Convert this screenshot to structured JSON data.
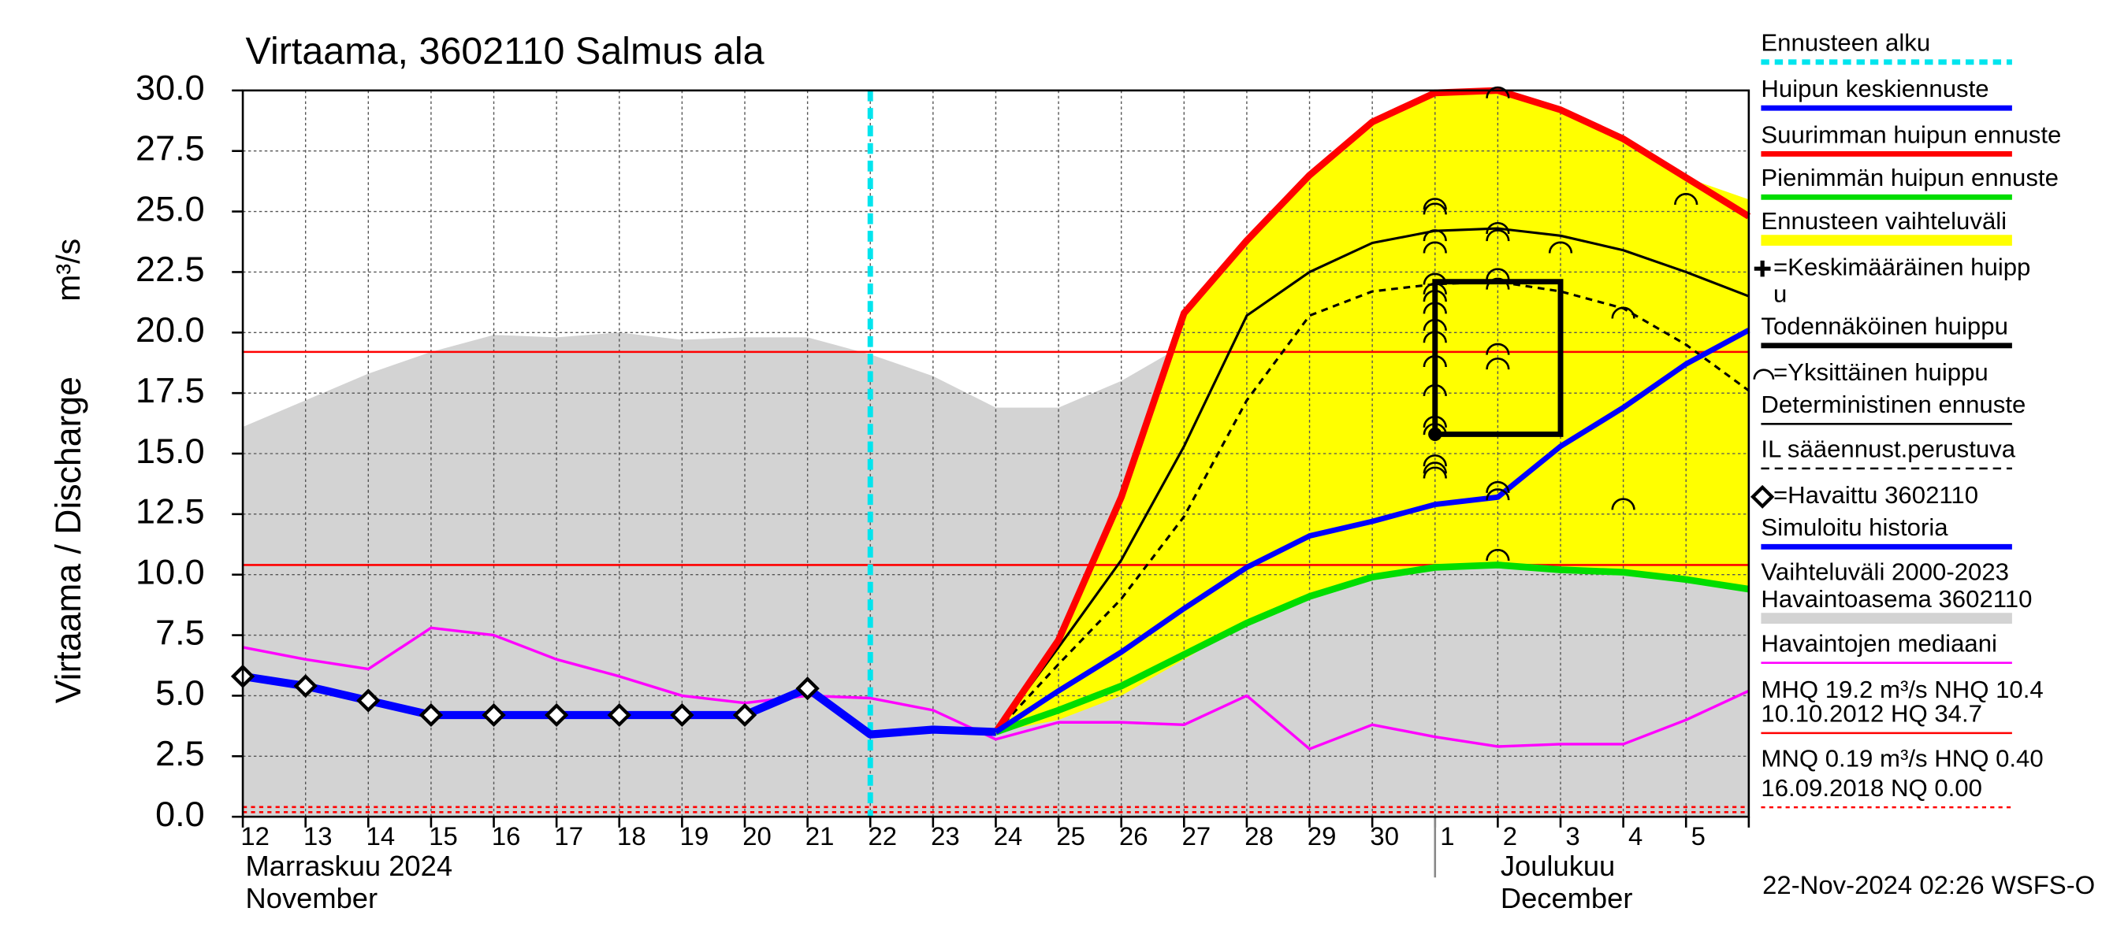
{
  "chart_data": {
    "type": "line",
    "title": "Virtaama, 3602110 Salmus ala",
    "y_label": "Virtaama / Discharge",
    "y_unit": "m³/s",
    "categories": [
      "12",
      "13",
      "14",
      "15",
      "16",
      "17",
      "18",
      "19",
      "20",
      "21",
      "22",
      "23",
      "24",
      "25",
      "26",
      "27",
      "28",
      "29",
      "30",
      "1",
      "2",
      "3",
      "4",
      "5",
      null
    ],
    "months": [
      [
        "Marraskuu 2024",
        "November"
      ],
      [
        "Joulukuu",
        "December"
      ]
    ],
    "ylim": [
      0,
      30
    ],
    "yticks": [
      {
        "value": 0,
        "label": "0.0"
      },
      {
        "value": 2.5,
        "label": "2.5"
      },
      {
        "value": 5,
        "label": "5.0"
      },
      {
        "value": 7.5,
        "label": "7.5"
      },
      {
        "value": 10,
        "label": "10.0"
      },
      {
        "value": 12.5,
        "label": "12.5"
      },
      {
        "value": 15,
        "label": "15.0"
      },
      {
        "value": 17.5,
        "label": "17.5"
      },
      {
        "value": 20,
        "label": "20.0"
      },
      {
        "value": 22.5,
        "label": "22.5"
      },
      {
        "value": 25,
        "label": "25.0"
      },
      {
        "value": 27.5,
        "label": "27.5"
      },
      {
        "value": 30,
        "label": "30.0"
      }
    ],
    "grid": true,
    "forecast_start": "22",
    "range_upper": {
      "color": "#d3d3d3",
      "values": [
        16.1,
        17.2,
        18.3,
        19.2,
        19.9,
        19.8,
        20.0,
        19.7,
        19.8,
        19.8,
        19.1,
        18.2,
        16.9,
        16.9,
        18.0,
        19.5,
        20.5,
        20.7,
        20.0,
        18.0,
        17.0,
        16.0,
        15.5,
        14.8,
        14.7
      ]
    },
    "band": {
      "color": "#ffff00",
      "upper": [
        null,
        null,
        null,
        null,
        null,
        null,
        null,
        null,
        null,
        null,
        null,
        null,
        3.5,
        7.3,
        13.2,
        20.8,
        23.8,
        26.5,
        28.7,
        29.9,
        30.0,
        29.2,
        28.0,
        26.4,
        25.5
      ],
      "lower": [
        null,
        null,
        null,
        null,
        null,
        null,
        null,
        null,
        null,
        null,
        null,
        null,
        3.5,
        4.0,
        5.0,
        6.5,
        8.0,
        9.1,
        9.9,
        10.3,
        10.4,
        10.2,
        10.1,
        9.8,
        9.4
      ]
    },
    "hlines": [
      {
        "value": 19.2,
        "color": "#ff0000",
        "style": "solid"
      },
      {
        "value": 10.4,
        "color": "#ff0000",
        "style": "solid"
      },
      {
        "value": 0.4,
        "color": "#ff0000",
        "style": "dotted"
      },
      {
        "value": 0.19,
        "color": "#ff0000",
        "style": "dotted"
      }
    ],
    "series": {
      "median": {
        "color": "#ff00ff",
        "values": [
          7.0,
          6.5,
          6.1,
          7.8,
          7.5,
          6.5,
          5.8,
          5.0,
          4.7,
          5.0,
          4.9,
          4.4,
          3.2,
          3.9,
          3.9,
          3.8,
          5.0,
          2.8,
          3.8,
          3.3,
          2.9,
          3.0,
          3.0,
          4.0,
          5.2
        ]
      },
      "deterministic": {
        "color": "#000000",
        "values": [
          null,
          null,
          null,
          null,
          null,
          null,
          null,
          null,
          null,
          null,
          null,
          null,
          3.5,
          7.0,
          10.6,
          15.3,
          20.7,
          22.5,
          23.7,
          24.2,
          24.3,
          24.0,
          23.4,
          22.5,
          21.5
        ]
      },
      "il_forecast": {
        "color": "#000000",
        "values": [
          null,
          null,
          null,
          null,
          null,
          null,
          null,
          null,
          null,
          null,
          null,
          null,
          3.5,
          6.3,
          9.0,
          12.4,
          17.2,
          20.7,
          21.7,
          22.0,
          22.1,
          21.7,
          21.0,
          19.5,
          17.6
        ]
      },
      "forecast_min": {
        "color": "#00dd00",
        "values": [
          null,
          null,
          null,
          null,
          null,
          null,
          null,
          null,
          null,
          null,
          null,
          null,
          3.5,
          4.4,
          5.4,
          6.7,
          8.0,
          9.1,
          9.9,
          10.3,
          10.4,
          10.2,
          10.1,
          9.8,
          9.4
        ]
      },
      "forecast_max": {
        "color": "#ff0000",
        "values": [
          null,
          null,
          null,
          null,
          null,
          null,
          null,
          null,
          null,
          null,
          null,
          null,
          3.5,
          7.3,
          13.2,
          20.8,
          23.8,
          26.5,
          28.7,
          29.9,
          30.0,
          29.2,
          28.0,
          26.4,
          24.8
        ]
      },
      "forecast_mean": {
        "color": "#0000ff",
        "values": [
          null,
          null,
          null,
          null,
          null,
          null,
          null,
          null,
          null,
          null,
          null,
          null,
          3.5,
          5.2,
          6.8,
          8.6,
          10.3,
          11.6,
          12.2,
          12.9,
          13.2,
          15.3,
          16.9,
          18.7,
          20.1
        ]
      },
      "simulated": {
        "color": "#0000ff",
        "values": [
          5.8,
          5.4,
          4.8,
          4.2,
          4.2,
          4.2,
          4.2,
          4.2,
          4.2,
          5.3,
          3.4,
          3.6,
          3.5,
          null,
          null,
          null,
          null,
          null,
          null,
          null,
          null,
          null,
          null,
          null,
          null
        ]
      }
    },
    "observed": {
      "color": "#000000",
      "values": [
        5.8,
        5.4,
        4.8,
        4.2,
        4.2,
        4.2,
        4.2,
        4.2,
        4.2,
        5.3,
        null,
        null,
        null,
        null,
        null,
        null,
        null,
        null,
        null,
        null,
        null,
        null,
        null,
        null,
        null
      ]
    },
    "peaks": {
      "x": [
        "1",
        "1",
        "1",
        "1",
        "1",
        "1",
        "1",
        "1",
        "1",
        "1",
        "1",
        "1",
        "1",
        "1",
        "1",
        "1",
        "1",
        "2",
        "2",
        "2",
        "2",
        "2",
        "2",
        "2",
        "2",
        "2",
        "2",
        "3",
        "4",
        "4",
        "5"
      ],
      "values": [
        25.3,
        25.1,
        24.0,
        23.5,
        22.2,
        21.8,
        21.5,
        21.0,
        20.3,
        19.8,
        18.8,
        17.6,
        16.3,
        16.0,
        14.7,
        14.4,
        14.2,
        29.9,
        24.3,
        24.0,
        22.4,
        22.0,
        19.3,
        18.7,
        13.6,
        13.3,
        10.8,
        23.5,
        20.8,
        12.9,
        25.5
      ]
    },
    "probable_peak": {
      "x": [
        "1",
        "3"
      ],
      "values": [
        15.8,
        22.1
      ]
    },
    "legend": [
      {
        "label": [
          "Ennusteen alku"
        ],
        "color": "#00e5ee",
        "style": "dashed"
      },
      {
        "label": [
          "Huipun keskiennuste"
        ],
        "color": "#0000ff",
        "style": "solid"
      },
      {
        "label": [
          "Suurimman huipun ennuste"
        ],
        "color": "#ff0000",
        "style": "solid"
      },
      {
        "label": [
          "Pienimmän huipun ennuste"
        ],
        "color": "#00dd00",
        "style": "solid"
      },
      {
        "label": [
          "Ennusteen vaihteluväli"
        ],
        "color": "#ffff00",
        "style": "band"
      },
      {
        "label": [
          "=Keskimääräinen huipp",
          "u"
        ],
        "color": "#000000",
        "style": "plus"
      },
      {
        "label": [
          "Todennäköinen huippu"
        ],
        "color": "#000000",
        "style": "solid"
      },
      {
        "label": [
          "=Yksittäinen huippu"
        ],
        "color": "#000000",
        "style": "arc"
      },
      {
        "label": [
          "Deterministinen ennuste"
        ],
        "color": "#000000",
        "style": "thin"
      },
      {
        "label": [
          "IL sääennust.perustuva"
        ],
        "color": "#000000",
        "style": "dashed"
      },
      {
        "label": [
          "=Havaittu 3602110"
        ],
        "color": "#000000",
        "style": "diamond"
      },
      {
        "label": [
          "Simuloitu historia"
        ],
        "color": "#0000ff",
        "style": "solid"
      },
      {
        "label": [
          "Vaihteluväli 2000-2023",
          " Havaintoasema 3602110"
        ],
        "color": "#d3d3d3",
        "style": "band"
      },
      {
        "label": [
          "Havaintojen mediaani"
        ],
        "color": "#ff00ff",
        "style": "thin"
      },
      {
        "label": [
          "MHQ 19.2 m³/s NHQ 10.4",
          "10.10.2012 HQ 34.7"
        ],
        "color": "#ff0000",
        "style": "thin"
      },
      {
        "label": [
          "MNQ 0.19 m³/s HNQ 0.40",
          "16.09.2018 NQ 0.00"
        ],
        "color": "#ff0000",
        "style": "dotted"
      }
    ],
    "footer": "22-Nov-2024 02:26 WSFS-O"
  }
}
